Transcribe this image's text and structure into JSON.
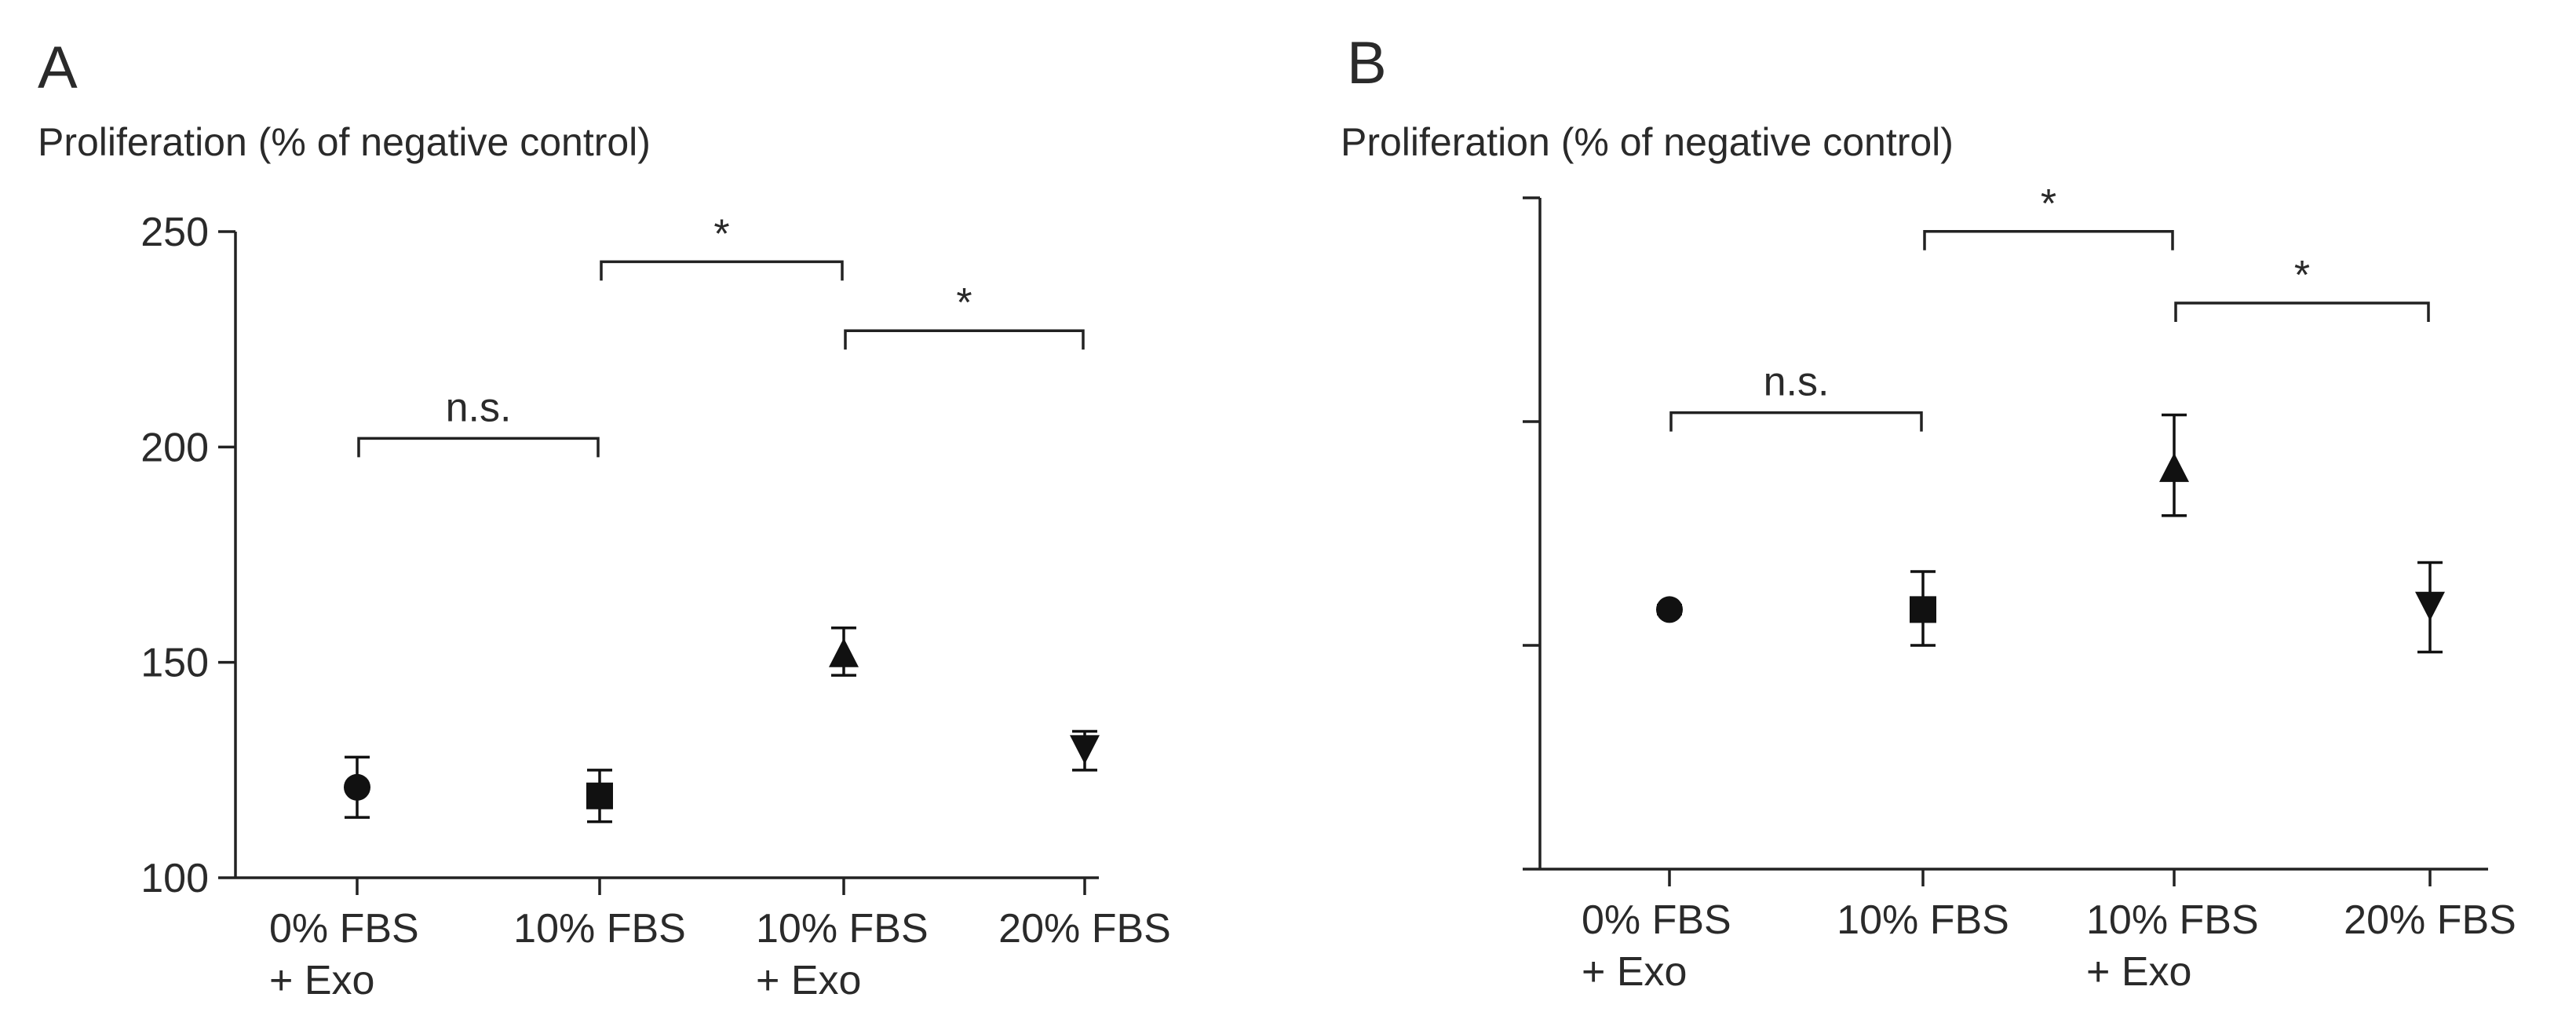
{
  "chart_data": [
    {
      "panel": "A",
      "type": "scatter",
      "ylabel": "Proliferation (% of negative control)",
      "ylim": [
        100,
        250
      ],
      "yticks": [
        100,
        150,
        200,
        250
      ],
      "categories": [
        [
          "0% FBS",
          "+ Exo"
        ],
        [
          "10% FBS"
        ],
        [
          "10% FBS",
          "+ Exo"
        ],
        [
          "20% FBS"
        ]
      ],
      "points": [
        {
          "marker": "circle",
          "mean": 121,
          "err_high": 128,
          "err_low": 114
        },
        {
          "marker": "square",
          "mean": 119,
          "err_high": 125,
          "err_low": 113
        },
        {
          "marker": "triangle-up",
          "mean": 152,
          "err_high": 158,
          "err_low": 147
        },
        {
          "marker": "triangle-down",
          "mean": 130,
          "err_high": 134,
          "err_low": 125
        }
      ],
      "comparisons": [
        {
          "from": 0,
          "to": 1,
          "label": "n.s.",
          "level": 202
        },
        {
          "from": 1,
          "to": 2,
          "label": "*",
          "level": 243
        },
        {
          "from": 2,
          "to": 3,
          "label": "*",
          "level": 227
        }
      ]
    },
    {
      "panel": "B",
      "type": "scatter",
      "ylabel": "Proliferation (% of negative control)",
      "ylim": [
        0,
        3
      ],
      "yticks": [
        0,
        1,
        2,
        3
      ],
      "yticklabels": false,
      "categories": [
        [
          "0% FBS",
          "+ Exo"
        ],
        [
          "10% FBS"
        ],
        [
          "10% FBS",
          "+ Exo"
        ],
        [
          "20% FBS"
        ]
      ],
      "points": [
        {
          "marker": "circle",
          "mean": 1.16,
          "err_high": 1.18,
          "err_low": 1.14
        },
        {
          "marker": "square",
          "mean": 1.16,
          "err_high": 1.33,
          "err_low": 1.0
        },
        {
          "marker": "triangle-up",
          "mean": 1.79,
          "err_high": 2.03,
          "err_low": 1.58
        },
        {
          "marker": "triangle-down",
          "mean": 1.18,
          "err_high": 1.37,
          "err_low": 0.97
        }
      ],
      "comparisons": [
        {
          "from": 0,
          "to": 1,
          "label": "n.s.",
          "level": 2.04
        },
        {
          "from": 1,
          "to": 2,
          "label": "*",
          "level": 2.85
        },
        {
          "from": 2,
          "to": 3,
          "label": "*",
          "level": 2.53
        }
      ]
    }
  ]
}
